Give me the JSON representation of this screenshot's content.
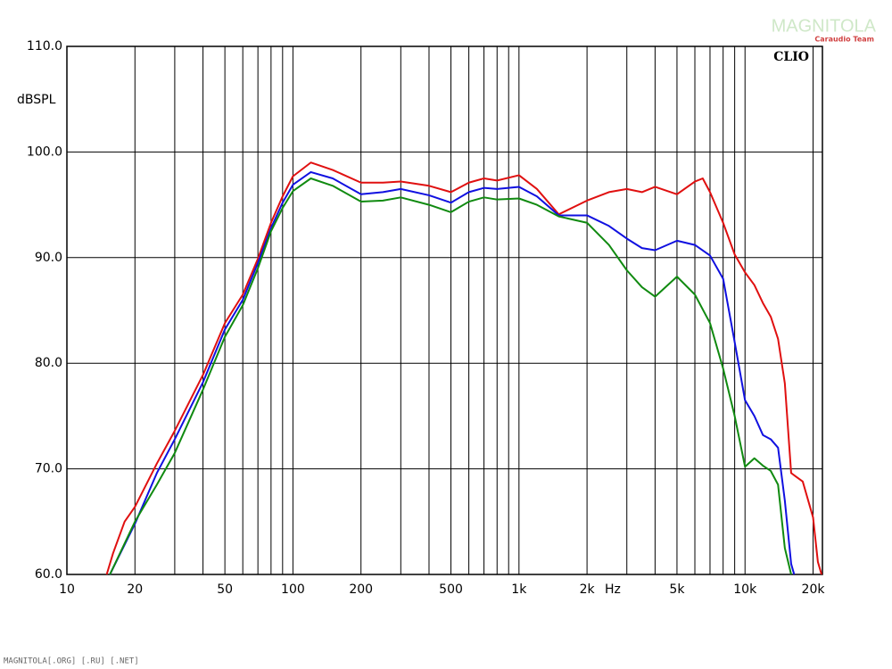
{
  "chart_data": {
    "type": "line",
    "y_label": "dBSPL",
    "x_unit": "Hz",
    "annotation": "CLIO",
    "watermark": "MAGNITOLA",
    "watermark_sub": "Caraudio Team",
    "footer": "MAGNITOLA[.ORG] [.RU] [.NET]",
    "xscale": "log",
    "grid": true,
    "xlim": [
      10,
      22000
    ],
    "ylim": [
      60,
      110
    ],
    "xticks": [
      10,
      20,
      50,
      100,
      200,
      500,
      {
        "value": 1000,
        "label": "1k"
      },
      {
        "value": 2000,
        "label": "2k"
      },
      {
        "value": 5000,
        "label": "5k"
      },
      {
        "value": 10000,
        "label": "10k"
      },
      {
        "value": 20000,
        "label": "20k"
      }
    ],
    "xminor_ticks": [
      30,
      40,
      60,
      70,
      80,
      90,
      300,
      400,
      600,
      700,
      800,
      900,
      3000,
      4000,
      6000,
      7000,
      8000,
      9000
    ],
    "yticks": [
      {
        "value": 60,
        "label": "60.0"
      },
      {
        "value": 70,
        "label": "70.0"
      },
      {
        "value": 80,
        "label": "80.0"
      },
      {
        "value": 90,
        "label": "90.0"
      },
      {
        "value": 100,
        "label": "100.0"
      },
      {
        "value": 110,
        "label": "110.0"
      }
    ],
    "series": [
      {
        "color": "#e01010",
        "x": [
          15,
          16,
          18,
          20,
          25,
          30,
          40,
          50,
          60,
          70,
          80,
          90,
          100,
          120,
          150,
          200,
          250,
          300,
          400,
          500,
          600,
          700,
          800,
          1000,
          1200,
          1500,
          2000,
          2500,
          3000,
          3500,
          4000,
          5000,
          6000,
          6500,
          7000,
          8000,
          9000,
          10000,
          11000,
          12000,
          13000,
          14000,
          15000,
          16000,
          18000,
          20000,
          21000,
          21800
        ],
        "values": [
          60,
          62,
          65,
          66.4,
          70.5,
          73.6,
          78.9,
          83.8,
          86.5,
          89.9,
          93.3,
          95.8,
          97.7,
          99.0,
          98.3,
          97.1,
          97.1,
          97.2,
          96.8,
          96.2,
          97.1,
          97.5,
          97.3,
          97.8,
          96.5,
          94.1,
          95.4,
          96.2,
          96.5,
          96.2,
          96.7,
          96.0,
          97.2,
          97.5,
          96.2,
          93.3,
          90.3,
          88.6,
          87.4,
          85.7,
          84.4,
          82.3,
          78.1,
          69.6,
          68.8,
          65.4,
          61.2,
          60
        ]
      },
      {
        "color": "#1010e0",
        "x": [
          15.5,
          20,
          25,
          30,
          40,
          50,
          60,
          70,
          80,
          90,
          100,
          120,
          150,
          200,
          250,
          300,
          400,
          500,
          600,
          700,
          800,
          1000,
          1200,
          1500,
          2000,
          2500,
          3000,
          3500,
          4000,
          5000,
          6000,
          7000,
          8000,
          9000,
          10000,
          11000,
          12000,
          13000,
          14000,
          15000,
          16000,
          16500
        ],
        "values": [
          60,
          64.8,
          69.6,
          72.8,
          78.2,
          83.2,
          86.0,
          89.5,
          92.8,
          95.2,
          96.9,
          98.1,
          97.5,
          96.0,
          96.2,
          96.5,
          95.9,
          95.2,
          96.2,
          96.6,
          96.5,
          96.7,
          95.8,
          94.0,
          94.0,
          93.0,
          91.8,
          90.9,
          90.7,
          91.6,
          91.2,
          90.2,
          88.0,
          82.0,
          76.5,
          75.0,
          73.2,
          72.8,
          72.0,
          67.0,
          61.0,
          60
        ]
      },
      {
        "color": "#108a10",
        "x": [
          15.5,
          20,
          25,
          30,
          40,
          50,
          60,
          70,
          80,
          90,
          100,
          120,
          150,
          200,
          250,
          300,
          400,
          500,
          600,
          700,
          800,
          1000,
          1200,
          1500,
          2000,
          2500,
          3000,
          3500,
          4000,
          5000,
          6000,
          7000,
          8000,
          9000,
          10000,
          11000,
          12000,
          13000,
          14000,
          15000,
          16000
        ],
        "values": [
          60,
          65.0,
          68.5,
          71.5,
          77.5,
          82.5,
          85.5,
          89.0,
          92.5,
          94.7,
          96.3,
          97.5,
          96.8,
          95.3,
          95.4,
          95.7,
          95.0,
          94.3,
          95.3,
          95.7,
          95.5,
          95.6,
          95.0,
          93.9,
          93.3,
          91.2,
          88.8,
          87.2,
          86.3,
          88.2,
          86.5,
          83.8,
          79.5,
          75.0,
          70.2,
          71.0,
          70.3,
          69.8,
          68.5,
          62.5,
          60
        ]
      }
    ]
  }
}
